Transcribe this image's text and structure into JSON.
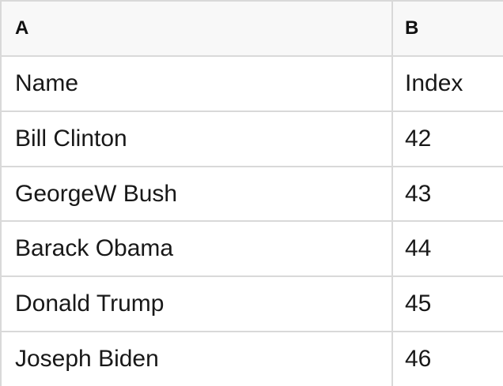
{
  "table": {
    "columns": [
      {
        "label": "A"
      },
      {
        "label": "B"
      }
    ],
    "rows": [
      [
        "Name",
        "Index"
      ],
      [
        "Bill Clinton",
        "42"
      ],
      [
        "GeorgeW Bush",
        "43"
      ],
      [
        "Barack Obama",
        "44"
      ],
      [
        "Donald Trump",
        "45"
      ],
      [
        "Joseph Biden",
        "46"
      ]
    ]
  },
  "colors": {
    "header_bg": "#f8f8f8",
    "border": "#d9d9d9",
    "cell_bg": "#ffffff",
    "text": "#181818"
  }
}
